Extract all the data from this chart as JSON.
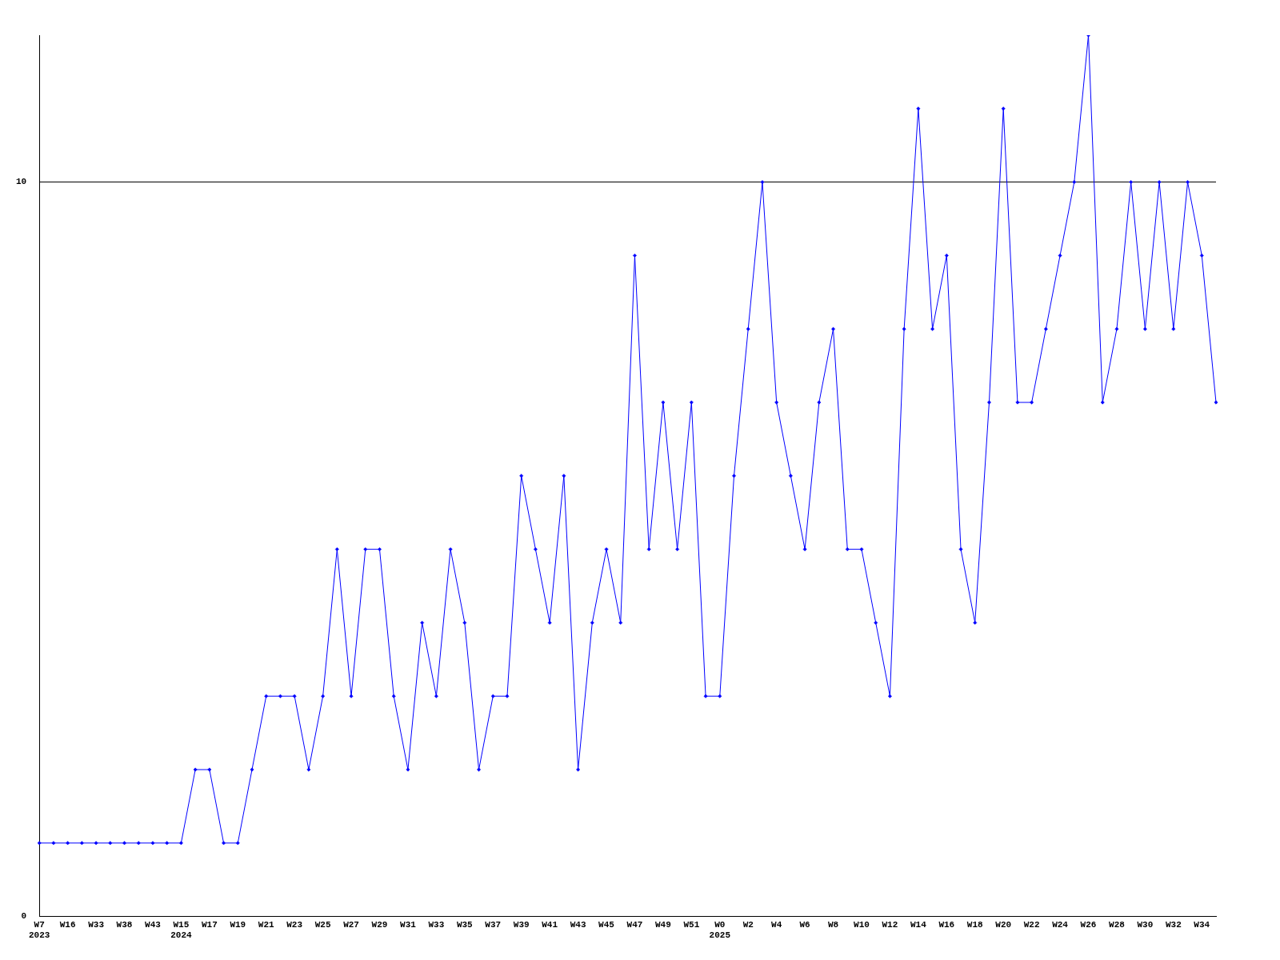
{
  "chart_data": {
    "type": "line",
    "categories": [
      "W7\n2023",
      null,
      "W16",
      null,
      "W33",
      null,
      "W38",
      null,
      "W43",
      null,
      "W15\n2024",
      null,
      "W17",
      null,
      "W19",
      null,
      "W21",
      null,
      "W23",
      null,
      "W25",
      null,
      "W27",
      null,
      "W29",
      null,
      "W31",
      null,
      "W33",
      null,
      "W35",
      null,
      "W37",
      null,
      "W39",
      null,
      "W41",
      null,
      "W43",
      null,
      "W45",
      null,
      "W47",
      null,
      "W49",
      null,
      "W51",
      null,
      "W0\n2025",
      null,
      "W2",
      null,
      "W4",
      null,
      "W6",
      null,
      "W8",
      null,
      "W10",
      null,
      "W12",
      null,
      "W14",
      null,
      "W16",
      null,
      "W18",
      null,
      "W20",
      null,
      "W22",
      null,
      "W24",
      null,
      "W26",
      null,
      "W28",
      null,
      "W30",
      null,
      "W32",
      null,
      "W34",
      null
    ],
    "series": [
      {
        "color": "#0000ff",
        "values": [
          1,
          1,
          1,
          1,
          1,
          1,
          1,
          1,
          1,
          1,
          1,
          2,
          2,
          1,
          1,
          2,
          3,
          3,
          3,
          2,
          3,
          5,
          3,
          5,
          5,
          3,
          2,
          4,
          3,
          5,
          4,
          2,
          3,
          3,
          6,
          5,
          4,
          6,
          2,
          4,
          5,
          4,
          9,
          5,
          7,
          5,
          7,
          3,
          3,
          6,
          8,
          10,
          7,
          6,
          5,
          7,
          8,
          5,
          5,
          4,
          3,
          8,
          11,
          8,
          9,
          5,
          4,
          7,
          11,
          7,
          7,
          8,
          9,
          10,
          12,
          7,
          8,
          10,
          8,
          10,
          8,
          10,
          9,
          7
        ]
      }
    ],
    "ylim": [
      0,
      12
    ],
    "yticks": [
      0,
      10
    ],
    "grid": "y",
    "legend": false,
    "marker": "diamond",
    "line_style": "solid"
  }
}
